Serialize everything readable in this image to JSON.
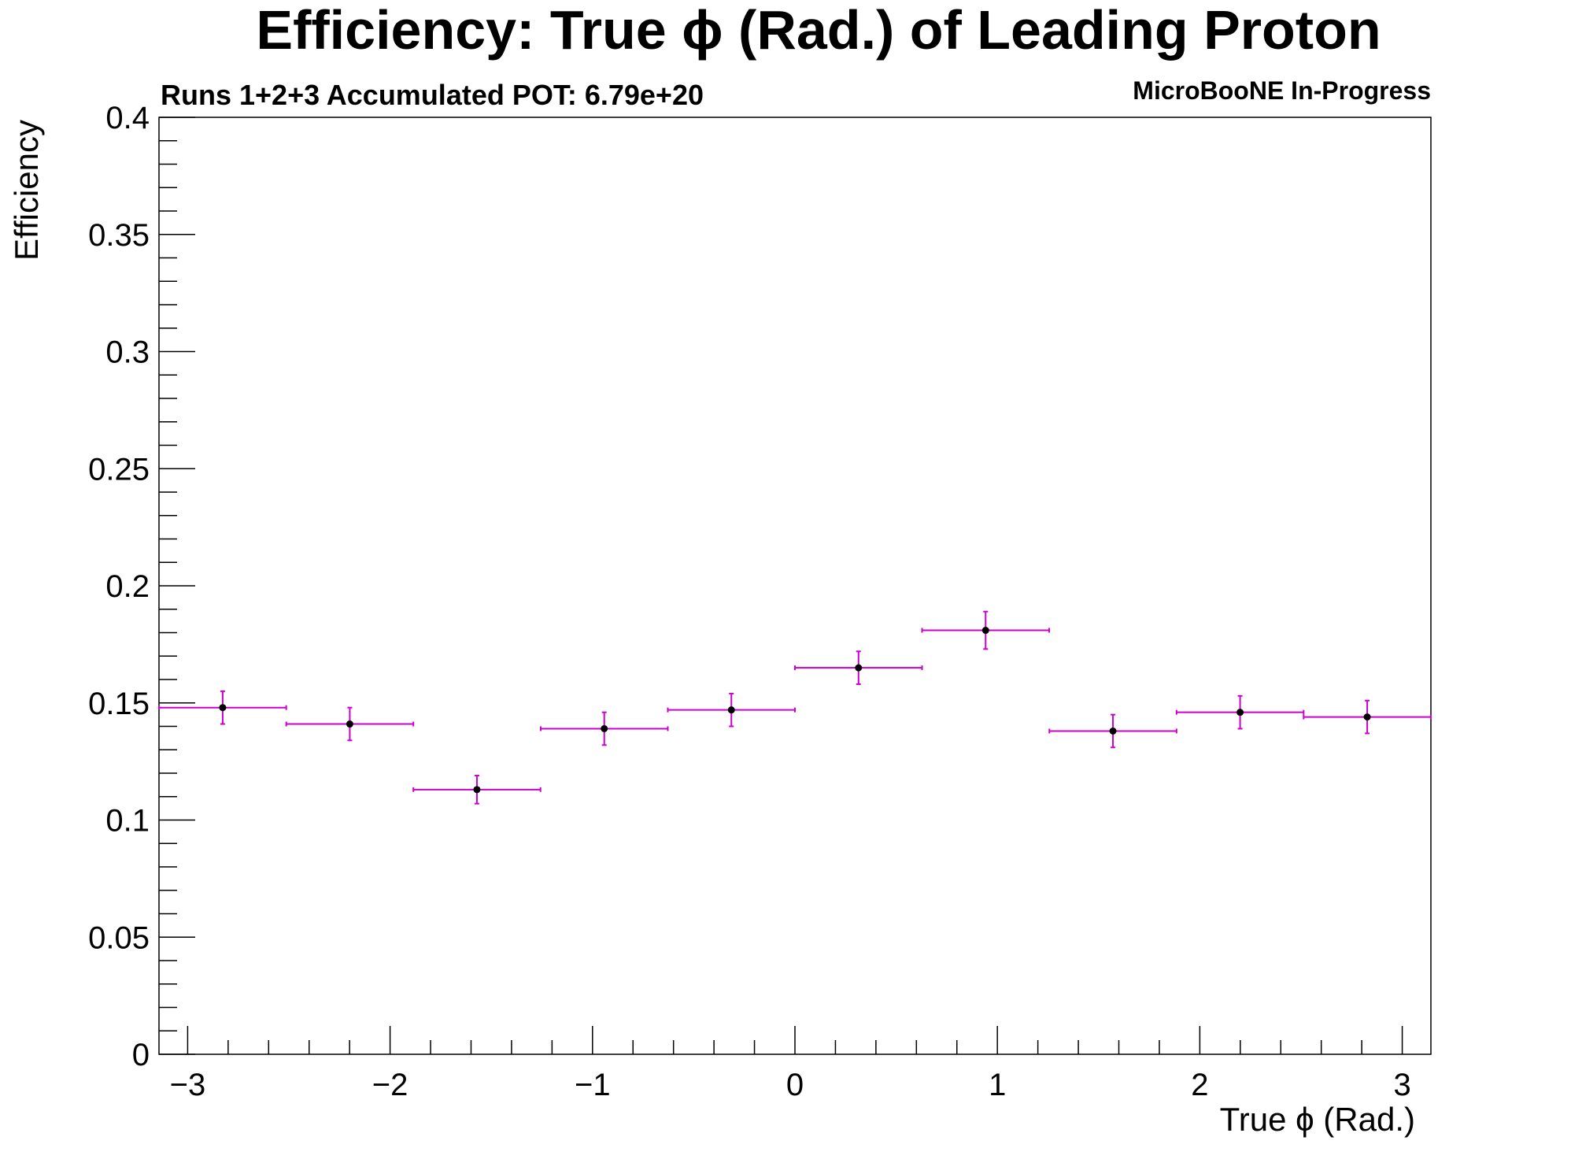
{
  "chart_data": {
    "type": "scatter",
    "title": "Efficiency: True  ϕ (Rad.) of Leading Proton",
    "subtitle_left": "Runs 1+2+3 Accumulated POT: 6.79e+20",
    "subtitle_right": "MicroBooNE In-Progress",
    "xlabel": "True ϕ (Rad.)",
    "ylabel": "Efficiency",
    "xlim": [
      -3.1416,
      3.1416
    ],
    "ylim": [
      0,
      0.4
    ],
    "x_ticks": [
      -3,
      -2,
      -1,
      0,
      1,
      2,
      3
    ],
    "x_tick_labels": [
      "−3",
      "−2",
      "−1",
      "0",
      "1",
      "2",
      "3"
    ],
    "y_ticks": [
      0,
      0.05,
      0.1,
      0.15,
      0.2,
      0.25,
      0.3,
      0.35,
      0.4
    ],
    "y_tick_labels": [
      "0",
      "0.05",
      "0.1",
      "0.15",
      "0.2",
      "0.25",
      "0.3",
      "0.35",
      "0.4"
    ],
    "grid": false,
    "marker_color": "#000000",
    "error_bar_color": "#cc00cc",
    "points": [
      {
        "x": -2.827,
        "xerr": 0.314,
        "y": 0.148,
        "yerr": 0.007
      },
      {
        "x": -2.199,
        "xerr": 0.314,
        "y": 0.141,
        "yerr": 0.007
      },
      {
        "x": -1.571,
        "xerr": 0.314,
        "y": 0.113,
        "yerr": 0.006
      },
      {
        "x": -0.942,
        "xerr": 0.314,
        "y": 0.139,
        "yerr": 0.007
      },
      {
        "x": -0.314,
        "xerr": 0.314,
        "y": 0.147,
        "yerr": 0.007
      },
      {
        "x": 0.314,
        "xerr": 0.314,
        "y": 0.165,
        "yerr": 0.007
      },
      {
        "x": 0.942,
        "xerr": 0.314,
        "y": 0.181,
        "yerr": 0.008
      },
      {
        "x": 1.571,
        "xerr": 0.314,
        "y": 0.138,
        "yerr": 0.007
      },
      {
        "x": 2.199,
        "xerr": 0.314,
        "y": 0.146,
        "yerr": 0.007
      },
      {
        "x": 2.827,
        "xerr": 0.314,
        "y": 0.144,
        "yerr": 0.007
      }
    ]
  }
}
